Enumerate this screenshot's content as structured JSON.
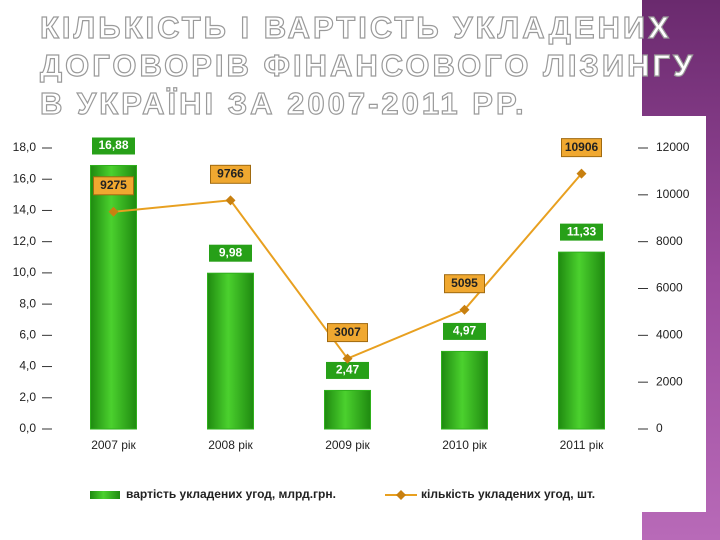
{
  "title_lines": [
    "КІЛЬКІСТЬ І ВАРТІСТЬ УКЛАДЕНИХ",
    "ДОГОВОРІВ ФІНАНСОВОГО ЛІЗИНГУ",
    "В УКРАЇНІ ЗА 2007-2011 РР."
  ],
  "chart_data": {
    "type": "combo",
    "categories": [
      "2007 рік",
      "2008 рік",
      "2009 рік",
      "2010 рік",
      "2011 рік"
    ],
    "series": [
      {
        "name": "вартість укладених угод, млрд.грн.",
        "type": "bar",
        "color": "#2fb01c",
        "values": [
          16.88,
          9.98,
          2.47,
          4.97,
          11.33
        ],
        "value_labels": [
          "16,88",
          "9,98",
          "2,47",
          "4,97",
          "11,33"
        ]
      },
      {
        "name": "кількість укладених угод, шт.",
        "type": "line",
        "axis": "y2",
        "color": "#e8a020",
        "values": [
          9275,
          9766,
          3007,
          5095,
          10906
        ]
      }
    ],
    "ylim": [
      0,
      18
    ],
    "yticks": [
      {
        "value": 0,
        "label": "0,0"
      },
      {
        "value": 2,
        "label": "2,0"
      },
      {
        "value": 4,
        "label": "4,0"
      },
      {
        "value": 6,
        "label": "6,0"
      },
      {
        "value": 8,
        "label": "8,0"
      },
      {
        "value": 10,
        "label": "10,0"
      },
      {
        "value": 12,
        "label": "12,0"
      },
      {
        "value": 14,
        "label": "14,0"
      },
      {
        "value": 16,
        "label": "16,0"
      },
      {
        "value": 18,
        "label": "18,0"
      }
    ],
    "y2lim": [
      0,
      12000
    ],
    "y2ticks": [
      0,
      2000,
      4000,
      6000,
      8000,
      10000,
      12000
    ]
  }
}
